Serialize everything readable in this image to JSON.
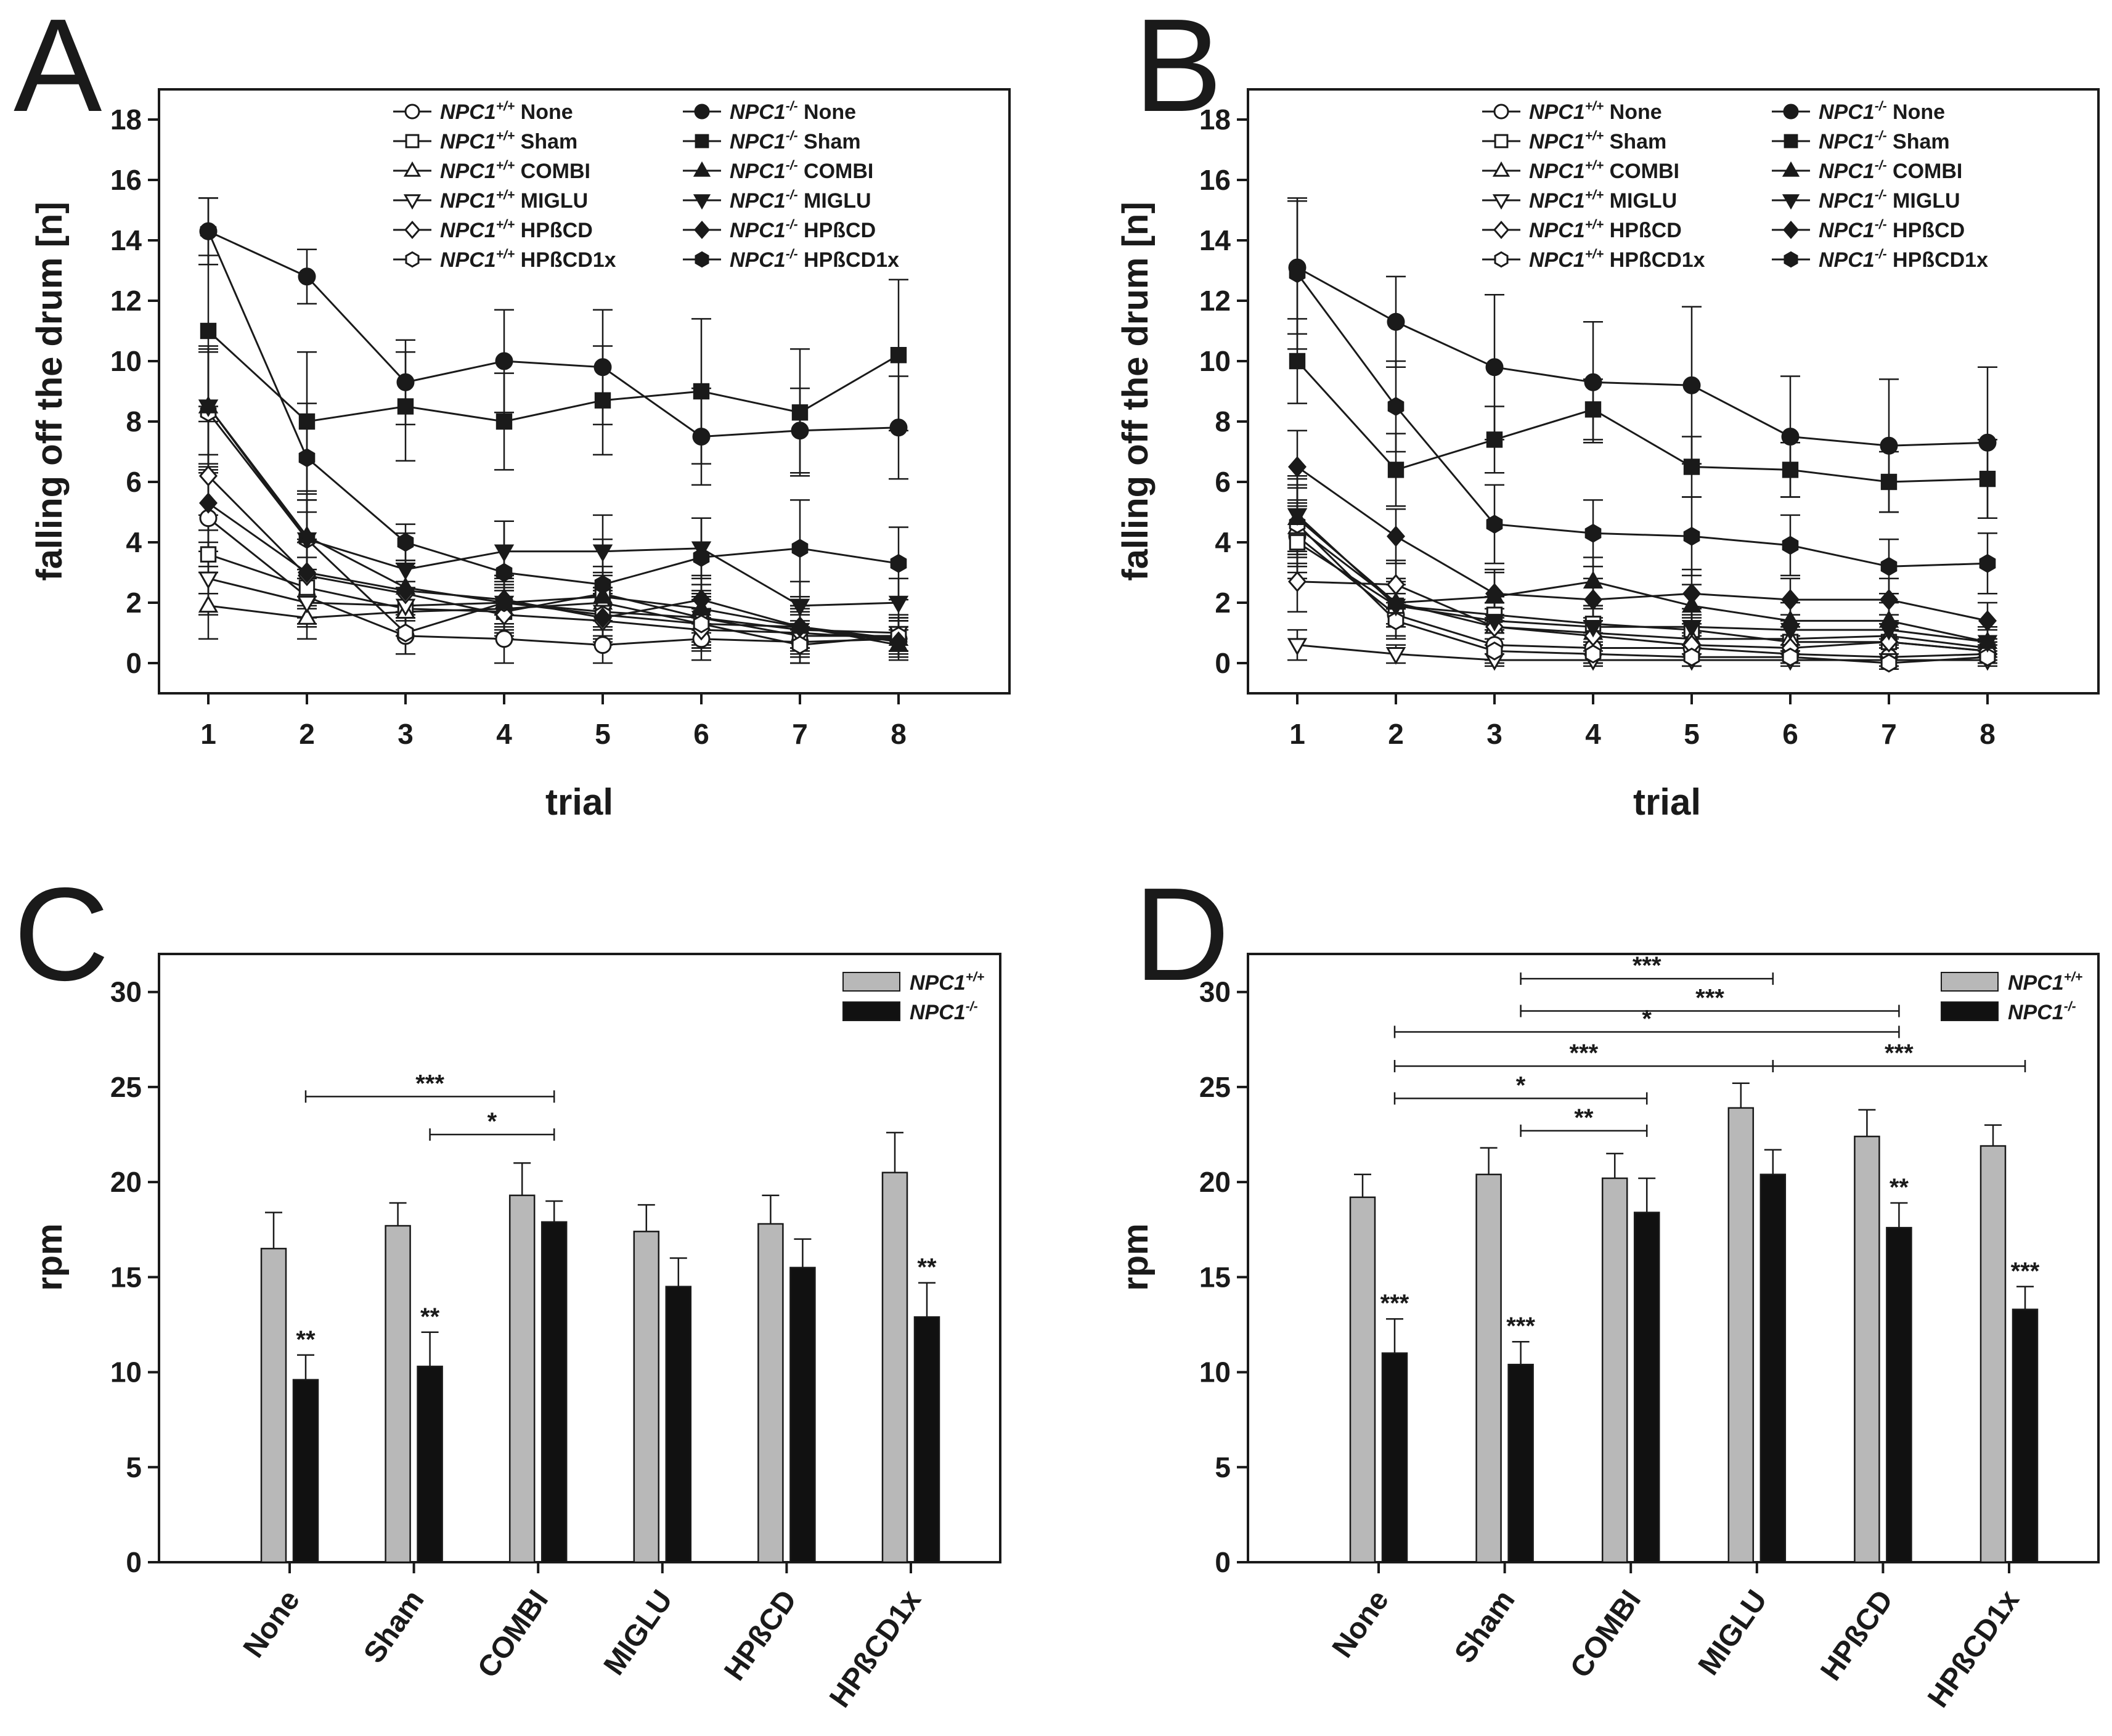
{
  "colors": {
    "wildtype_bar": "#b8b8b8",
    "mutant_bar": "#111111",
    "ink": "#1a1a1a"
  },
  "chart_data": [
    {
      "panel": "A",
      "type": "line",
      "xlabel": "trial",
      "ylabel": "falling off the drum [n]",
      "ylim": [
        -1,
        19
      ],
      "yticks": [
        0,
        2,
        4,
        6,
        8,
        10,
        12,
        14,
        16,
        18
      ],
      "x": [
        1,
        2,
        3,
        4,
        5,
        6,
        7,
        8
      ],
      "legend_position": "top-right",
      "series": [
        {
          "genotype": "NPC1",
          "sup": "+/+",
          "treatment": "None",
          "marker": "circle",
          "filled": false,
          "values": [
            4.8,
            2.2,
            0.9,
            0.8,
            0.6,
            0.8,
            0.7,
            0.8
          ],
          "errors": [
            1.6,
            0.9,
            0.6,
            0.8,
            0.6,
            0.7,
            0.7,
            0.6
          ]
        },
        {
          "genotype": "NPC1",
          "sup": "+/+",
          "treatment": "Sham",
          "marker": "square",
          "filled": false,
          "values": [
            3.6,
            2.5,
            1.8,
            1.7,
            2.3,
            1.5,
            0.9,
            0.9
          ],
          "errors": [
            1.3,
            1.0,
            0.9,
            0.8,
            0.9,
            0.9,
            0.7,
            0.6
          ]
        },
        {
          "genotype": "NPC1",
          "sup": "+/+",
          "treatment": "COMBI",
          "marker": "triangle-up",
          "filled": false,
          "values": [
            1.9,
            1.5,
            1.7,
            1.8,
            2.0,
            1.3,
            1.2,
            0.8
          ],
          "errors": [
            1.1,
            0.7,
            0.8,
            0.8,
            0.9,
            0.8,
            0.7,
            0.6
          ]
        },
        {
          "genotype": "NPC1",
          "sup": "+/+",
          "treatment": "MIGLU",
          "marker": "triangle-down",
          "filled": false,
          "values": [
            2.8,
            2.0,
            1.9,
            2.0,
            1.7,
            1.5,
            1.1,
            1.0
          ],
          "errors": [
            1.2,
            0.8,
            0.8,
            0.8,
            0.8,
            0.8,
            0.7,
            0.6
          ]
        },
        {
          "genotype": "NPC1",
          "sup": "+/+",
          "treatment": "HPßCD",
          "marker": "diamond",
          "filled": false,
          "values": [
            6.2,
            2.9,
            2.3,
            1.6,
            1.4,
            1.1,
            1.0,
            0.8
          ],
          "errors": [
            1.8,
            1.1,
            0.9,
            0.8,
            0.8,
            0.7,
            0.7,
            0.6
          ]
        },
        {
          "genotype": "NPC1",
          "sup": "+/+",
          "treatment": "HPßCD1x",
          "marker": "hexagon",
          "filled": false,
          "values": [
            8.3,
            4.1,
            1.0,
            2.0,
            1.6,
            1.3,
            0.6,
            0.9
          ],
          "errors": [
            2.0,
            1.3,
            0.7,
            0.9,
            0.8,
            0.8,
            0.6,
            0.6
          ]
        },
        {
          "genotype": "NPC1",
          "sup": "-/-",
          "treatment": "None",
          "marker": "circle",
          "filled": true,
          "values": [
            14.3,
            12.8,
            9.3,
            10.0,
            9.8,
            7.5,
            7.7,
            7.8
          ],
          "errors": [
            1.1,
            0.9,
            1.4,
            1.7,
            1.9,
            1.6,
            1.4,
            1.7
          ]
        },
        {
          "genotype": "NPC1",
          "sup": "-/-",
          "treatment": "Sham",
          "marker": "square",
          "filled": true,
          "values": [
            11.0,
            8.0,
            8.5,
            8.0,
            8.7,
            9.0,
            8.3,
            10.2
          ],
          "errors": [
            2.5,
            2.3,
            1.8,
            1.6,
            1.8,
            2.4,
            2.1,
            2.5
          ]
        },
        {
          "genotype": "NPC1",
          "sup": "-/-",
          "treatment": "COMBI",
          "marker": "triangle-up",
          "filled": true,
          "values": [
            8.5,
            4.2,
            2.5,
            2.0,
            2.2,
            1.8,
            1.2,
            0.6
          ],
          "errors": [
            2.0,
            1.4,
            0.9,
            0.8,
            0.8,
            0.8,
            0.7,
            0.5
          ]
        },
        {
          "genotype": "NPC1",
          "sup": "-/-",
          "treatment": "MIGLU",
          "marker": "triangle-down",
          "filled": true,
          "values": [
            8.5,
            4.1,
            3.1,
            3.7,
            3.7,
            3.8,
            1.9,
            2.0
          ],
          "errors": [
            1.9,
            1.3,
            1.2,
            1.0,
            1.2,
            1.0,
            0.8,
            0.8
          ]
        },
        {
          "genotype": "NPC1",
          "sup": "-/-",
          "treatment": "HPßCD",
          "marker": "diamond",
          "filled": true,
          "values": [
            5.3,
            3.0,
            2.4,
            2.1,
            1.5,
            2.1,
            1.2,
            0.7
          ],
          "errors": [
            1.6,
            1.1,
            0.9,
            0.8,
            0.8,
            0.8,
            0.7,
            0.5
          ]
        },
        {
          "genotype": "NPC1",
          "sup": "-/-",
          "treatment": "HPßCD1x",
          "marker": "hexagon",
          "filled": true,
          "values": [
            14.3,
            6.8,
            4.0,
            3.0,
            2.6,
            3.5,
            3.8,
            3.3
          ],
          "errors": [
            1.1,
            1.8,
            0.6,
            1.7,
            1.5,
            1.3,
            1.6,
            1.2
          ]
        }
      ]
    },
    {
      "panel": "B",
      "type": "line",
      "xlabel": "trial",
      "ylabel": "falling off the drum [n]",
      "ylim": [
        -1,
        19
      ],
      "yticks": [
        0,
        2,
        4,
        6,
        8,
        10,
        12,
        14,
        16,
        18
      ],
      "x": [
        1,
        2,
        3,
        4,
        5,
        6,
        7,
        8
      ],
      "legend_position": "top-right",
      "series": [
        {
          "genotype": "NPC1",
          "sup": "+/+",
          "treatment": "None",
          "marker": "circle",
          "filled": false,
          "values": [
            4.2,
            1.6,
            0.6,
            0.5,
            0.5,
            0.3,
            0.2,
            0.3
          ],
          "errors": [
            1.2,
            0.7,
            0.5,
            0.5,
            0.4,
            0.3,
            0.3,
            0.3
          ]
        },
        {
          "genotype": "NPC1",
          "sup": "+/+",
          "treatment": "Sham",
          "marker": "square",
          "filled": false,
          "values": [
            4.0,
            1.9,
            1.6,
            1.3,
            1.1,
            0.7,
            0.7,
            0.4
          ],
          "errors": [
            1.2,
            0.7,
            0.6,
            0.6,
            0.5,
            0.4,
            0.4,
            0.3
          ]
        },
        {
          "genotype": "NPC1",
          "sup": "+/+",
          "treatment": "COMBI",
          "marker": "triangle-up",
          "filled": false,
          "values": [
            4.5,
            2.0,
            1.2,
            1.0,
            0.8,
            0.8,
            0.9,
            0.5
          ],
          "errors": [
            1.3,
            0.7,
            0.6,
            0.5,
            0.5,
            0.4,
            0.4,
            0.3
          ]
        },
        {
          "genotype": "NPC1",
          "sup": "+/+",
          "treatment": "MIGLU",
          "marker": "triangle-down",
          "filled": false,
          "values": [
            0.6,
            0.3,
            0.1,
            0.1,
            0.1,
            0.1,
            0.1,
            0.1
          ],
          "errors": [
            0.5,
            0.3,
            0.2,
            0.2,
            0.2,
            0.2,
            0.2,
            0.2
          ]
        },
        {
          "genotype": "NPC1",
          "sup": "+/+",
          "treatment": "HPßCD",
          "marker": "diamond",
          "filled": false,
          "values": [
            2.7,
            2.6,
            1.2,
            0.9,
            0.6,
            0.5,
            0.7,
            0.4
          ],
          "errors": [
            1.0,
            0.8,
            0.6,
            0.5,
            0.4,
            0.4,
            0.4,
            0.3
          ]
        },
        {
          "genotype": "NPC1",
          "sup": "+/+",
          "treatment": "HPßCD1x",
          "marker": "hexagon",
          "filled": false,
          "values": [
            4.6,
            1.4,
            0.4,
            0.3,
            0.2,
            0.2,
            0.0,
            0.2
          ],
          "errors": [
            1.3,
            0.6,
            0.4,
            0.3,
            0.3,
            0.2,
            0.2,
            0.2
          ]
        },
        {
          "genotype": "NPC1",
          "sup": "-/-",
          "treatment": "None",
          "marker": "circle",
          "filled": true,
          "values": [
            13.1,
            11.3,
            9.8,
            9.3,
            9.2,
            7.5,
            7.2,
            7.3
          ],
          "errors": [
            2.2,
            1.5,
            2.4,
            2.0,
            2.6,
            2.0,
            2.2,
            2.5
          ]
        },
        {
          "genotype": "NPC1",
          "sup": "-/-",
          "treatment": "Sham",
          "marker": "square",
          "filled": true,
          "values": [
            10.0,
            6.4,
            7.4,
            8.4,
            6.5,
            6.4,
            6.0,
            6.1
          ],
          "errors": [
            1.4,
            1.2,
            1.1,
            1.0,
            1.0,
            0.9,
            1.0,
            1.3
          ]
        },
        {
          "genotype": "NPC1",
          "sup": "-/-",
          "treatment": "COMBI",
          "marker": "triangle-up",
          "filled": true,
          "values": [
            4.8,
            2.0,
            2.2,
            2.7,
            1.9,
            1.4,
            1.4,
            0.7
          ],
          "errors": [
            1.3,
            0.8,
            0.8,
            0.8,
            0.7,
            0.6,
            0.6,
            0.5
          ]
        },
        {
          "genotype": "NPC1",
          "sup": "-/-",
          "treatment": "MIGLU",
          "marker": "triangle-down",
          "filled": true,
          "values": [
            4.9,
            1.9,
            1.4,
            1.2,
            1.2,
            1.1,
            1.1,
            0.7
          ],
          "errors": [
            1.3,
            0.7,
            0.6,
            0.6,
            0.6,
            0.5,
            0.5,
            0.4
          ]
        },
        {
          "genotype": "NPC1",
          "sup": "-/-",
          "treatment": "HPßCD",
          "marker": "diamond",
          "filled": true,
          "values": [
            6.5,
            4.2,
            2.3,
            2.1,
            2.3,
            2.1,
            2.1,
            1.4
          ],
          "errors": [
            1.2,
            0.9,
            0.8,
            0.7,
            0.8,
            0.7,
            0.7,
            0.6
          ]
        },
        {
          "genotype": "NPC1",
          "sup": "-/-",
          "treatment": "HPßCD1x",
          "marker": "hexagon",
          "filled": true,
          "values": [
            12.9,
            8.5,
            4.6,
            4.3,
            4.2,
            3.9,
            3.2,
            3.3
          ],
          "errors": [
            2.5,
            1.5,
            1.3,
            1.1,
            1.3,
            1.0,
            0.9,
            1.0
          ]
        }
      ]
    },
    {
      "panel": "C",
      "type": "bar",
      "ylabel": "rpm",
      "ylim": [
        0,
        32
      ],
      "yticks": [
        0,
        5,
        10,
        15,
        20,
        25,
        30
      ],
      "categories": [
        "None",
        "Sham",
        "COMBI",
        "MIGLU",
        "HPßCD",
        "HPßCD1x"
      ],
      "legend_position": "top-right",
      "series": [
        {
          "name": "NPC1",
          "sup": "+/+",
          "color_key": "wildtype_bar",
          "values": [
            16.5,
            17.7,
            19.3,
            17.4,
            17.8,
            20.5
          ],
          "errors": [
            1.9,
            1.2,
            1.7,
            1.4,
            1.5,
            2.1
          ]
        },
        {
          "name": "NPC1",
          "sup": "-/-",
          "color_key": "mutant_bar",
          "values": [
            9.6,
            10.3,
            17.9,
            14.5,
            15.5,
            12.9
          ],
          "errors": [
            1.3,
            1.8,
            1.1,
            1.5,
            1.5,
            1.8
          ]
        }
      ],
      "significance_labels": [
        "**",
        "**",
        null,
        null,
        null,
        "**"
      ],
      "brackets": [
        {
          "from": 0,
          "to": 2,
          "y": 24.5,
          "label": "***"
        },
        {
          "from": 1,
          "to": 2,
          "y": 22.5,
          "label": "*"
        }
      ]
    },
    {
      "panel": "D",
      "type": "bar",
      "ylabel": "rpm",
      "ylim": [
        0,
        32
      ],
      "yticks": [
        0,
        5,
        10,
        15,
        20,
        25,
        30
      ],
      "categories": [
        "None",
        "Sham",
        "COMBI",
        "MIGLU",
        "HPßCD",
        "HPßCD1x"
      ],
      "legend_position": "top-right",
      "series": [
        {
          "name": "NPC1",
          "sup": "+/+",
          "color_key": "wildtype_bar",
          "values": [
            19.2,
            20.4,
            20.2,
            23.9,
            22.4,
            21.9
          ],
          "errors": [
            1.2,
            1.4,
            1.3,
            1.3,
            1.4,
            1.1
          ]
        },
        {
          "name": "NPC1",
          "sup": "-/-",
          "color_key": "mutant_bar",
          "values": [
            11.0,
            10.4,
            18.4,
            20.4,
            17.6,
            13.3
          ],
          "errors": [
            1.8,
            1.2,
            1.8,
            1.3,
            1.3,
            1.2
          ]
        }
      ],
      "significance_labels": [
        "***",
        "***",
        null,
        null,
        "**",
        "***"
      ],
      "brackets": [
        {
          "from": 1,
          "to": 3,
          "y": 30.7,
          "label": "***"
        },
        {
          "from": 1,
          "to": 4,
          "y": 29.0,
          "label": "***"
        },
        {
          "from": 0,
          "to": 4,
          "y": 27.9,
          "label": "*"
        },
        {
          "from": 0,
          "to": 3,
          "y": 26.1,
          "label": "***"
        },
        {
          "from": 3,
          "to": 5,
          "y": 26.1,
          "label": "***"
        },
        {
          "from": 0,
          "to": 2,
          "y": 24.4,
          "label": "*"
        },
        {
          "from": 1,
          "to": 2,
          "y": 22.7,
          "label": "**"
        }
      ]
    }
  ]
}
